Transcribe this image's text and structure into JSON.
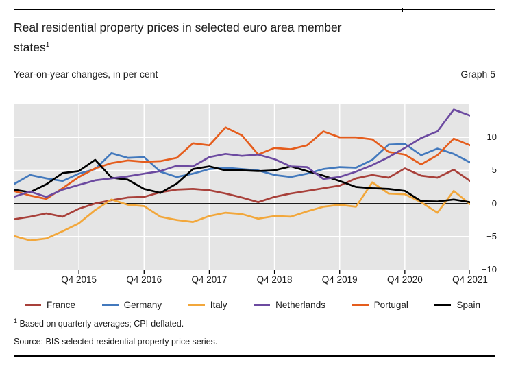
{
  "header": {
    "title_line1": "Real residential property prices in selected euro area member",
    "title_line2": "states",
    "title_footnote_marker": "1",
    "subtitle": "Year-on-year changes, in per cent",
    "graph_label": "Graph 5"
  },
  "chart_data": {
    "type": "line",
    "x_unit": "quarter",
    "x_range": [
      "Q4 2014",
      "Q4 2021"
    ],
    "n_points": 29,
    "x_tick_labels": [
      "Q4 2015",
      "Q4 2016",
      "Q4 2017",
      "Q4 2018",
      "Q4 2019",
      "Q4 2020",
      "Q4 2021"
    ],
    "x_tick_indices": [
      4,
      8,
      12,
      16,
      20,
      24,
      28
    ],
    "ylim": [
      -10,
      15
    ],
    "y_ticks": [
      10,
      5,
      0,
      -5,
      -10
    ],
    "grid": true,
    "legend_position": "bottom",
    "plot_bg": "#e5e5e5",
    "grid_color": "#ffffff",
    "zero_line_color": "#1a1a1a",
    "tick_color": "#000000",
    "series": [
      {
        "name": "France",
        "color": "#a8403a",
        "values": [
          -2.4,
          -2.0,
          -1.5,
          -2.0,
          -0.8,
          0.0,
          0.5,
          0.9,
          1.0,
          1.7,
          2.1,
          2.2,
          2.0,
          1.5,
          0.9,
          0.2,
          1.0,
          1.5,
          1.9,
          2.3,
          2.7,
          3.8,
          4.3,
          3.9,
          5.3,
          4.2,
          3.9,
          5.1,
          3.4
        ]
      },
      {
        "name": "Germany",
        "color": "#4379bd",
        "values": [
          2.9,
          4.3,
          3.8,
          3.4,
          4.5,
          5.2,
          7.6,
          6.9,
          7.0,
          4.8,
          4.0,
          4.5,
          5.2,
          5.4,
          5.2,
          5.0,
          4.3,
          4.0,
          4.5,
          5.2,
          5.5,
          5.4,
          6.6,
          8.9,
          9.0,
          7.3,
          8.3,
          7.5,
          6.2
        ]
      },
      {
        "name": "Italy",
        "color": "#f2a73b",
        "values": [
          -4.9,
          -5.6,
          -5.3,
          -4.2,
          -3.0,
          -1.0,
          0.6,
          -0.2,
          -0.4,
          -2.0,
          -2.5,
          -2.8,
          -1.9,
          -1.4,
          -1.6,
          -2.3,
          -1.9,
          -2.0,
          -1.2,
          -0.5,
          -0.2,
          -0.5,
          3.2,
          1.5,
          1.4,
          0.2,
          -1.4,
          1.9,
          -0.1
        ]
      },
      {
        "name": "Netherlands",
        "color": "#6c4aa0",
        "values": [
          1.0,
          1.8,
          1.0,
          2.1,
          2.8,
          3.5,
          3.8,
          4.1,
          4.5,
          4.9,
          5.7,
          5.6,
          7.0,
          7.5,
          7.2,
          7.4,
          6.7,
          5.6,
          5.5,
          3.7,
          4.0,
          4.8,
          5.8,
          7.0,
          8.4,
          9.9,
          10.9,
          14.2,
          13.3
        ]
      },
      {
        "name": "Portugal",
        "color": "#e55d1d",
        "values": [
          1.9,
          1.2,
          0.7,
          2.3,
          4.0,
          5.3,
          6.1,
          6.5,
          6.3,
          6.4,
          6.9,
          9.1,
          8.8,
          11.5,
          10.3,
          7.4,
          8.4,
          8.2,
          8.8,
          10.9,
          10.0,
          10.0,
          9.7,
          7.8,
          7.4,
          5.9,
          7.3,
          9.8,
          8.8
        ]
      },
      {
        "name": "Spain",
        "color": "#000000",
        "values": [
          2.1,
          1.7,
          2.9,
          4.6,
          4.9,
          6.6,
          3.9,
          3.6,
          2.2,
          1.6,
          3.0,
          5.2,
          5.6,
          5.0,
          5.0,
          4.9,
          5.0,
          5.6,
          4.9,
          4.2,
          3.4,
          2.5,
          2.3,
          2.2,
          1.9,
          0.35,
          0.3,
          0.6,
          0.2
        ]
      }
    ],
    "draw_order": [
      "France",
      "Italy",
      "Germany",
      "Portugal",
      "Spain",
      "Netherlands"
    ]
  },
  "footnote": {
    "marker": "1",
    "text": "Based on quarterly averages; CPI-deflated."
  },
  "source": "Source: BIS selected residential property price series."
}
